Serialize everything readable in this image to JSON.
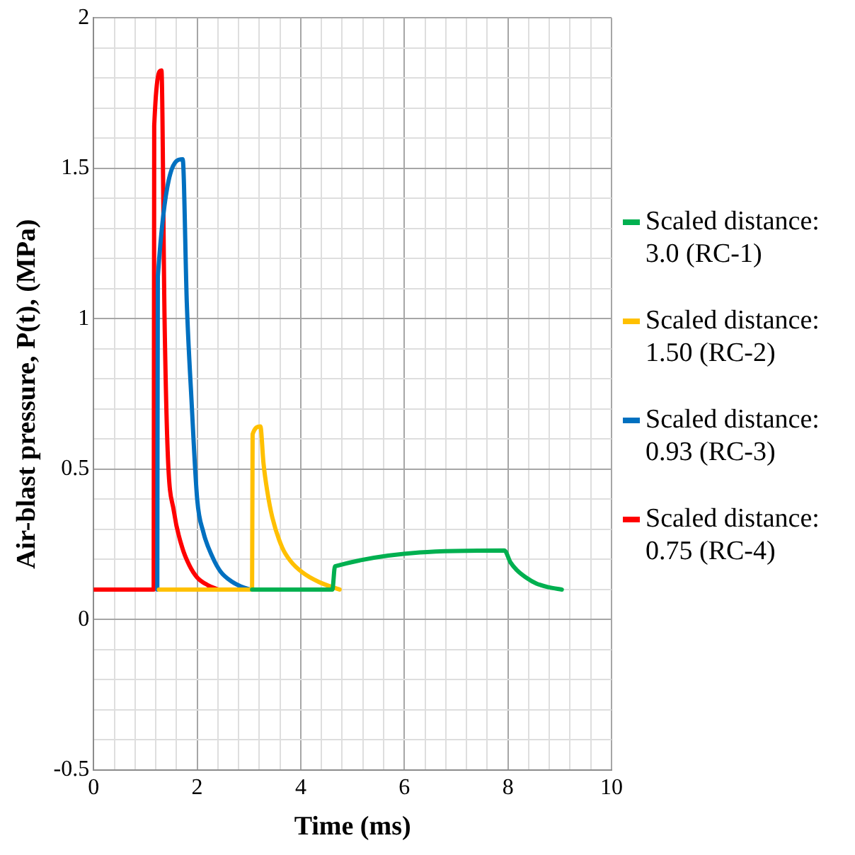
{
  "chart_data": {
    "type": "line",
    "xlabel": "Time (ms)",
    "ylabel": "Air-blast pressure, P(t), (MPa)",
    "xlim": [
      0,
      10
    ],
    "ylim": [
      -0.5,
      2
    ],
    "xticks": [
      0,
      {
        "value": 0.4,
        "label": null
      },
      {
        "value": 0.8,
        "label": null
      },
      {
        "value": 1.2,
        "label": null
      },
      {
        "value": 1.6,
        "label": null
      },
      2,
      {
        "value": 2.4,
        "label": null
      },
      {
        "value": 2.8,
        "label": null
      },
      {
        "value": 3.2,
        "label": null
      },
      {
        "value": 3.6,
        "label": null
      },
      4,
      {
        "value": 4.4,
        "label": null
      },
      {
        "value": 4.8,
        "label": null
      },
      {
        "value": 5.2,
        "label": null
      },
      {
        "value": 5.6,
        "label": null
      },
      6,
      {
        "value": 6.4,
        "label": null
      },
      {
        "value": 6.8,
        "label": null
      },
      {
        "value": 7.2,
        "label": null
      },
      {
        "value": 7.6,
        "label": null
      },
      8,
      {
        "value": 8.4,
        "label": null
      },
      {
        "value": 8.8,
        "label": null
      },
      {
        "value": 9.2,
        "label": null
      },
      {
        "value": 9.6,
        "label": null
      },
      10
    ],
    "yticks": [
      -0.5,
      {
        "value": -0.4,
        "label": null
      },
      {
        "value": -0.3,
        "label": null
      },
      {
        "value": -0.2,
        "label": null
      },
      {
        "value": -0.1,
        "label": null
      },
      0,
      {
        "value": 0.1,
        "label": null
      },
      {
        "value": 0.2,
        "label": null
      },
      {
        "value": 0.3,
        "label": null
      },
      {
        "value": 0.4,
        "label": null
      },
      0.5,
      {
        "value": 0.6,
        "label": null
      },
      {
        "value": 0.7,
        "label": null
      },
      {
        "value": 0.8,
        "label": null
      },
      {
        "value": 0.9,
        "label": null
      },
      1,
      {
        "value": 1.1,
        "label": null
      },
      {
        "value": 1.2,
        "label": null
      },
      {
        "value": 1.3,
        "label": null
      },
      {
        "value": 1.4,
        "label": null
      },
      1.5,
      {
        "value": 1.6,
        "label": null
      },
      {
        "value": 1.7,
        "label": null
      },
      {
        "value": 1.8,
        "label": null
      },
      {
        "value": 1.9,
        "label": null
      },
      2
    ],
    "grid": true,
    "legend": "right",
    "marker": "none",
    "line_style": "solid",
    "series": [
      {
        "name": "Scaled distance: 3.0 (RC-1)",
        "color": "#00b050",
        "x": [
          3.06,
          4.61,
          4.66,
          7.93,
          8.05,
          8.17,
          8.35,
          8.55,
          8.8,
          9.04
        ],
        "values": [
          0.1,
          0.1,
          0.177,
          0.23,
          0.19,
          0.165,
          0.14,
          0.12,
          0.107,
          0.1
        ]
      },
      {
        "name": "Scaled distance: 1.50 (RC-2)",
        "color": "#ffc000",
        "x": [
          1.26,
          3.06,
          3.07,
          3.22,
          3.28,
          3.35,
          3.45,
          3.64,
          3.8,
          4.03,
          4.35,
          4.75
        ],
        "values": [
          0.1,
          0.1,
          0.616,
          0.642,
          0.52,
          0.43,
          0.34,
          0.24,
          0.195,
          0.157,
          0.125,
          0.1
        ]
      },
      {
        "name": "Scaled distance: 0.93 (RC-3)",
        "color": "#0070c0",
        "x": [
          1.23,
          1.24,
          1.72,
          1.8,
          1.89,
          2.0,
          2.12,
          2.29,
          2.45,
          2.68,
          2.85,
          3.02
        ],
        "values": [
          0.1,
          1.14,
          1.53,
          1.05,
          0.73,
          0.4,
          0.29,
          0.21,
          0.16,
          0.125,
          0.11,
          0.1
        ]
      },
      {
        "name": "Scaled distance: 0.75 (RC-4)",
        "color": "#ff0000",
        "x": [
          0,
          1.16,
          1.17,
          1.31,
          1.37,
          1.43,
          1.55,
          1.71,
          1.85,
          2.0,
          2.2,
          2.41
        ],
        "values": [
          0.1,
          0.1,
          1.64,
          1.825,
          1.0,
          0.56,
          0.36,
          0.24,
          0.18,
          0.14,
          0.115,
          0.1
        ]
      }
    ]
  }
}
